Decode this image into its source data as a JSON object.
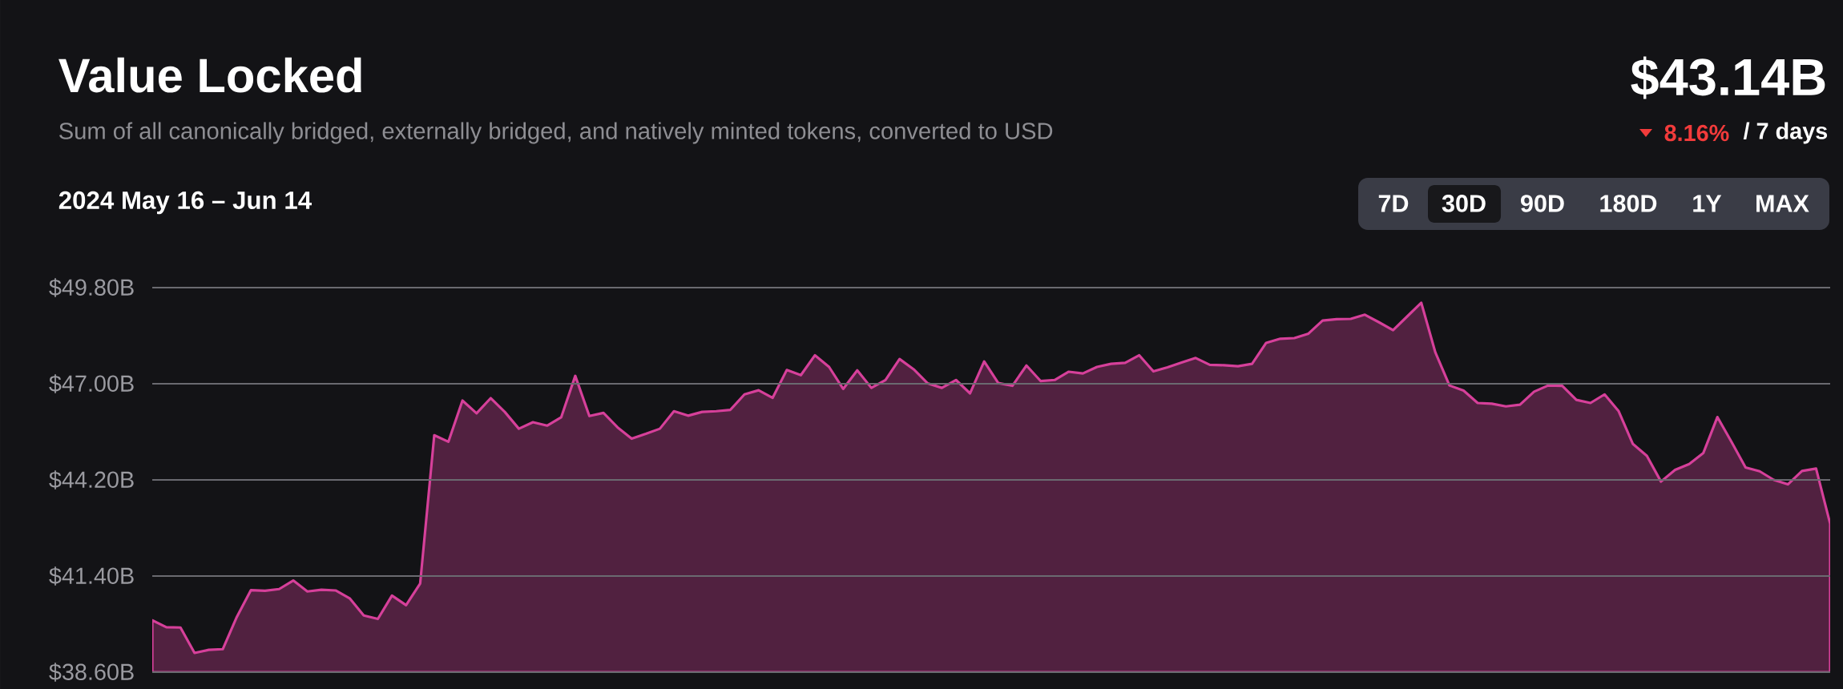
{
  "chart_data": {
    "type": "area",
    "title": "Value Locked",
    "subtitle": "Sum of all canonically bridged, externally bridged, and natively minted tokens, converted to USD",
    "annotations": [
      "$43.14B",
      "8.16%",
      "/ 7 days",
      "2024 May 16 – Jun 14",
      "7D",
      "30D",
      "90D",
      "180D",
      "1Y",
      "MAX"
    ],
    "categories": [
      null,
      null,
      null,
      null,
      null,
      null,
      null,
      null,
      null,
      null,
      null,
      null,
      null,
      null,
      null,
      null,
      null,
      null,
      null,
      null,
      null,
      null,
      null,
      null,
      null,
      null,
      null,
      null,
      null,
      null,
      null,
      null,
      null,
      null,
      null,
      null,
      null,
      null,
      null,
      null,
      null,
      null,
      null,
      null,
      null,
      null,
      null,
      null,
      null,
      null,
      null,
      null,
      null,
      null,
      null,
      null,
      null,
      null,
      null,
      null,
      null,
      null,
      null,
      null,
      null,
      null,
      null,
      null,
      null,
      null,
      null,
      null,
      null,
      null,
      null,
      null,
      null,
      null,
      null,
      null,
      null,
      null,
      null,
      null,
      null,
      null,
      null,
      null,
      null,
      null,
      null,
      null,
      null,
      null,
      null,
      null,
      null,
      null,
      null,
      null,
      null,
      null,
      null,
      null,
      null,
      null,
      null,
      null,
      null,
      null,
      null,
      null,
      null,
      null,
      null,
      null,
      null,
      null,
      null,
      null
    ],
    "color": "#512140",
    "values": [
      40.11,
      39.91,
      39.9,
      39.16,
      39.25,
      39.27,
      40.21,
      40.99,
      40.97,
      41.02,
      41.27,
      40.95,
      41.0,
      40.98,
      40.75,
      40.25,
      40.15,
      40.83,
      40.55,
      41.18,
      45.5,
      45.31,
      46.51,
      46.14,
      46.58,
      46.18,
      45.69,
      45.88,
      45.78,
      46.02,
      47.23,
      46.06,
      46.15,
      45.73,
      45.4,
      45.54,
      45.69,
      46.2,
      46.07,
      46.18,
      46.2,
      46.24,
      46.69,
      46.81,
      46.59,
      47.4,
      47.25,
      47.83,
      47.49,
      46.85,
      47.39,
      46.88,
      47.11,
      47.72,
      47.42,
      47.01,
      46.88,
      47.11,
      46.72,
      47.65,
      47.02,
      46.94,
      47.53,
      47.08,
      47.11,
      47.35,
      47.3,
      47.49,
      47.58,
      47.61,
      47.83,
      47.36,
      47.48,
      47.62,
      47.75,
      47.55,
      47.54,
      47.51,
      47.58,
      48.19,
      48.31,
      48.33,
      48.46,
      48.84,
      48.88,
      48.89,
      49.01,
      48.79,
      48.56,
      48.96,
      49.36,
      47.91,
      46.95,
      46.8,
      46.44,
      46.42,
      46.34,
      46.39,
      46.77,
      46.95,
      46.94,
      46.53,
      46.44,
      46.69,
      46.2,
      45.25,
      44.9,
      44.15,
      44.49,
      44.66,
      44.98,
      46.03,
      45.31,
      44.56,
      44.45,
      44.2,
      44.07,
      44.46,
      44.53,
      42.92
    ],
    "ylim": [
      38.6,
      49.8
    ],
    "yticks": [
      {
        "value": 38.6,
        "label": "$38.60B"
      },
      {
        "value": 41.4,
        "label": "$41.40B"
      },
      {
        "value": 44.2,
        "label": "$44.20B"
      },
      {
        "value": 47.0,
        "label": "$47.00B"
      },
      {
        "value": 49.8,
        "label": "$49.80B"
      }
    ],
    "grid": "y",
    "tick_labels": "y"
  }
}
